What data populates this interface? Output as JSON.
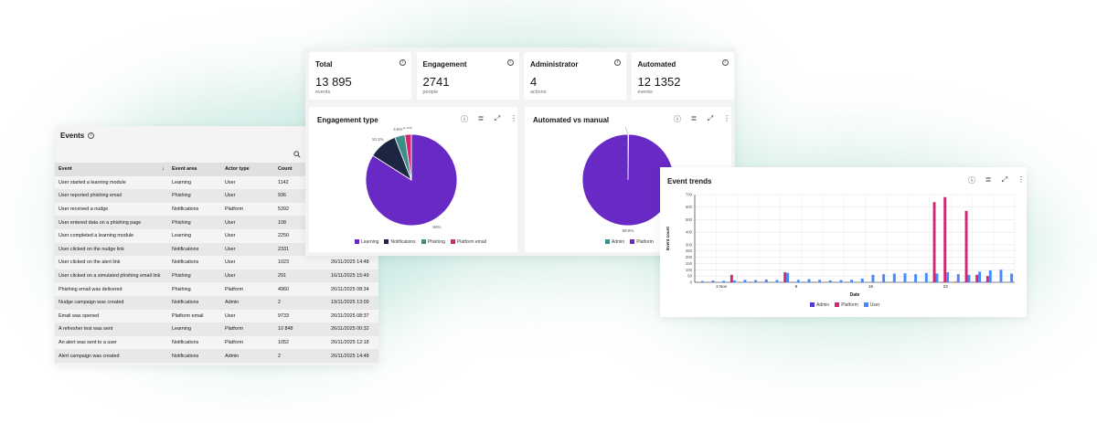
{
  "colors": {
    "learning": "#6929c4",
    "notifications": "#1c2541",
    "phishing": "#3e8e87",
    "platform_email": "#d12771",
    "admin": "#4c3bd8",
    "platform": "#d12771",
    "user": "#4589ff"
  },
  "events": {
    "title": "Events",
    "columns": [
      "Event",
      "Event area",
      "Actor type",
      "Count",
      ""
    ],
    "rows": [
      [
        "User started a learning module",
        "Learning",
        "User",
        "1142",
        ""
      ],
      [
        "User reported phishing email",
        "Phishing",
        "User",
        "936",
        ""
      ],
      [
        "User received a nudge",
        "Notifications",
        "Platform",
        "5392",
        ""
      ],
      [
        "User entered data on a phishing page",
        "Phishing",
        "User",
        "108",
        ""
      ],
      [
        "User completed a learning module",
        "Learning",
        "User",
        "2250",
        ""
      ],
      [
        "User clicked on the nudge link",
        "Notifications",
        "User",
        "2331",
        ""
      ],
      [
        "User clicked on the alert link",
        "Notifications",
        "User",
        "1023",
        "26/11/2025 14:48"
      ],
      [
        "User clicked on a simulated phishing email link",
        "Phishing",
        "User",
        "291",
        "16/11/2025 15:49"
      ],
      [
        "Phishing email was delivered",
        "Phishing",
        "Platform",
        "4960",
        "26/11/2025 08:34"
      ],
      [
        "Nudge campaign was created",
        "Notifications",
        "Admin",
        "2",
        "19/11/2025 13:09"
      ],
      [
        "Email was opened",
        "Platform email",
        "User",
        "9733",
        "26/11/2025 08:37"
      ],
      [
        "A refresher test was sent",
        "Learning",
        "Platform",
        "10 848",
        "26/11/2025 00:32"
      ],
      [
        "An alert was sent to a user",
        "Notifications",
        "Platform",
        "1052",
        "26/11/2025 12:18"
      ],
      [
        "Alert campaign was created",
        "Notifications",
        "Admin",
        "2",
        "26/11/2025 14:48"
      ]
    ]
  },
  "kpis": [
    {
      "title": "Total",
      "value": "13 895",
      "unit": "events"
    },
    {
      "title": "Engagement",
      "value": "2741",
      "unit": "people"
    },
    {
      "title": "Administrator",
      "value": "4",
      "unit": "actions"
    },
    {
      "title": "Automated",
      "value": "12 1352",
      "unit": "events"
    }
  ],
  "engagement": {
    "title": "Engagement type",
    "legend": [
      "Learning",
      "Notifications",
      "Phishing",
      "Platform email"
    ]
  },
  "automated": {
    "title": "Automated vs manual",
    "legend": [
      "Admin",
      "Platform"
    ]
  },
  "trends": {
    "title": "Event trends",
    "xlabel": "Date",
    "ylabel": "Event count",
    "legend": [
      "Admin",
      "Platform",
      "User"
    ]
  },
  "chart_data": [
    {
      "type": "pie",
      "title": "Engagement type",
      "categories": [
        "Learning",
        "Notifications",
        "Phishing",
        "Platform email"
      ],
      "values": [
        84,
        10.1,
        3.6,
        2.3
      ],
      "labels": [
        "84%",
        "10.1%",
        "3.6%",
        "2.3%"
      ]
    },
    {
      "type": "pie",
      "title": "Automated vs manual",
      "categories": [
        "Admin",
        "Platform"
      ],
      "values": [
        0.2,
        99.8
      ],
      "labels": [
        "0.2%",
        "99.8%"
      ]
    },
    {
      "type": "bar",
      "title": "Event trends",
      "xlabel": "Date",
      "ylabel": "Event count",
      "ylim": [
        0,
        700
      ],
      "yticks": [
        0,
        50,
        100,
        150,
        200,
        250,
        300,
        400,
        500,
        600,
        700
      ],
      "xticks": [
        "2 Nov",
        "9",
        "16",
        "23"
      ],
      "series": [
        {
          "name": "Admin",
          "values": [
            2,
            2,
            0,
            1,
            0,
            3,
            2,
            0,
            0,
            2,
            3,
            2,
            0,
            1,
            2,
            0,
            0,
            0,
            1,
            0,
            0,
            0,
            1,
            2,
            0,
            2,
            3,
            4,
            1,
            0
          ]
        },
        {
          "name": "Platform",
          "values": [
            0,
            0,
            0,
            60,
            0,
            0,
            0,
            0,
            80,
            0,
            0,
            0,
            0,
            0,
            0,
            0,
            0,
            0,
            0,
            0,
            0,
            0,
            640,
            680,
            5,
            570,
            60,
            50,
            0,
            0
          ]
        },
        {
          "name": "User",
          "values": [
            10,
            14,
            12,
            15,
            20,
            18,
            22,
            18,
            75,
            20,
            25,
            20,
            15,
            18,
            20,
            30,
            60,
            65,
            70,
            72,
            65,
            75,
            70,
            80,
            65,
            60,
            85,
            95,
            100,
            70
          ]
        }
      ]
    }
  ]
}
